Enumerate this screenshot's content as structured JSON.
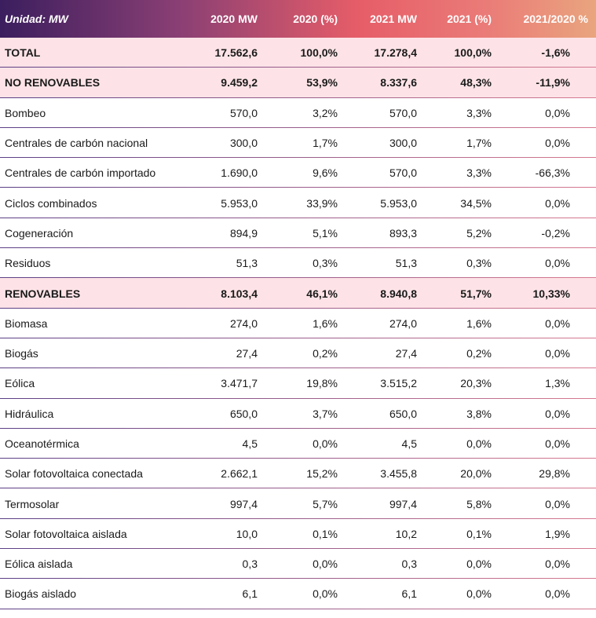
{
  "table": {
    "header": [
      "Unidad: MW",
      "2020 MW",
      "2020 (%)",
      "2021 MW",
      "2021 (%)",
      "2021/2020 %"
    ],
    "rows": [
      {
        "highlight": true,
        "cells": [
          "TOTAL",
          "17.562,6",
          "100,0%",
          "17.278,4",
          "100,0%",
          "-1,6%"
        ]
      },
      {
        "highlight": true,
        "cells": [
          "NO RENOVABLES",
          "9.459,2",
          "53,9%",
          "8.337,6",
          "48,3%",
          "-11,9%"
        ]
      },
      {
        "highlight": false,
        "cells": [
          "Bombeo",
          "570,0",
          "3,2%",
          "570,0",
          "3,3%",
          "0,0%"
        ]
      },
      {
        "highlight": false,
        "cells": [
          "Centrales de carbón nacional",
          "300,0",
          "1,7%",
          "300,0",
          "1,7%",
          "0,0%"
        ]
      },
      {
        "highlight": false,
        "cells": [
          "Centrales de carbón importado",
          "1.690,0",
          "9,6%",
          "570,0",
          "3,3%",
          "-66,3%"
        ]
      },
      {
        "highlight": false,
        "cells": [
          "Ciclos combinados",
          "5.953,0",
          "33,9%",
          "5.953,0",
          "34,5%",
          "0,0%"
        ]
      },
      {
        "highlight": false,
        "cells": [
          "Cogeneración",
          "894,9",
          "5,1%",
          "893,3",
          "5,2%",
          "-0,2%"
        ]
      },
      {
        "highlight": false,
        "cells": [
          "Residuos",
          "51,3",
          "0,3%",
          "51,3",
          "0,3%",
          "0,0%"
        ]
      },
      {
        "highlight": true,
        "cells": [
          "RENOVABLES",
          "8.103,4",
          "46,1%",
          "8.940,8",
          "51,7%",
          "10,33%"
        ]
      },
      {
        "highlight": false,
        "cells": [
          "Biomasa",
          "274,0",
          "1,6%",
          "274,0",
          "1,6%",
          "0,0%"
        ]
      },
      {
        "highlight": false,
        "cells": [
          "Biogás",
          "27,4",
          "0,2%",
          "27,4",
          "0,2%",
          "0,0%"
        ]
      },
      {
        "highlight": false,
        "cells": [
          "Eólica",
          "3.471,7",
          "19,8%",
          "3.515,2",
          "20,3%",
          "1,3%"
        ]
      },
      {
        "highlight": false,
        "cells": [
          "Hidráulica",
          "650,0",
          "3,7%",
          "650,0",
          "3,8%",
          "0,0%"
        ]
      },
      {
        "highlight": false,
        "cells": [
          "Oceanotérmica",
          "4,5",
          "0,0%",
          "4,5",
          "0,0%",
          "0,0%"
        ]
      },
      {
        "highlight": false,
        "cells": [
          "Solar fotovoltaica conectada",
          "2.662,1",
          "15,2%",
          "3.455,8",
          "20,0%",
          "29,8%"
        ]
      },
      {
        "highlight": false,
        "cells": [
          "Termosolar",
          "997,4",
          "5,7%",
          "997,4",
          "5,8%",
          "0,0%"
        ]
      },
      {
        "highlight": false,
        "cells": [
          "Solar fotovoltaica aislada",
          "10,0",
          "0,1%",
          "10,2",
          "0,1%",
          "1,9%"
        ]
      },
      {
        "highlight": false,
        "cells": [
          "Eólica aislada",
          "0,3",
          "0,0%",
          "0,3",
          "0,0%",
          "0,0%"
        ]
      },
      {
        "highlight": false,
        "cells": [
          "Biogás aislado",
          "6,1",
          "0,0%",
          "6,1",
          "0,0%",
          "0,0%"
        ]
      }
    ]
  }
}
